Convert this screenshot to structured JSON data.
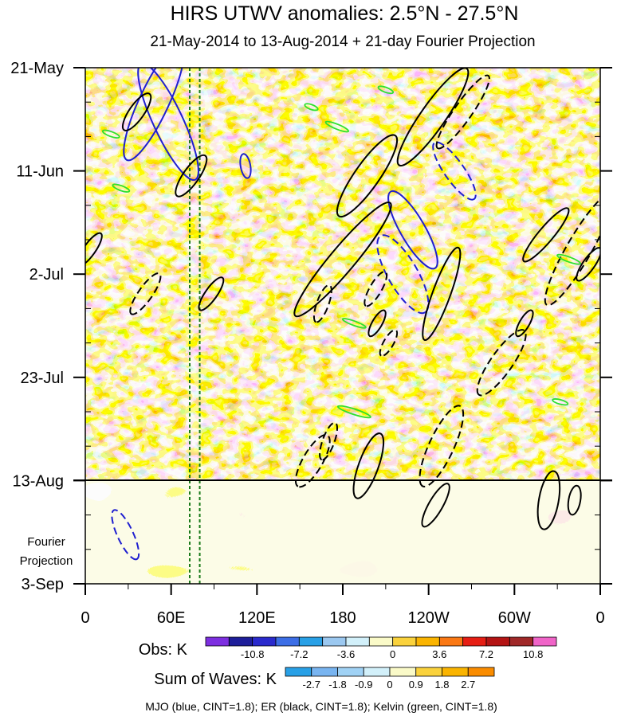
{
  "chart_data": {
    "type": "heatmap",
    "title": "HIRS UTWV anomalies: 2.5°N - 27.5°N",
    "subtitle": "21-May-2014 to 13-Aug-2014 + 21-day Fourier Projection",
    "x_tick_labels": [
      "0",
      "60E",
      "120E",
      "180",
      "120W",
      "60W",
      "0"
    ],
    "x_ticks_deg": [
      0,
      60,
      120,
      180,
      240,
      300,
      360
    ],
    "y_tick_labels": [
      "21-May",
      "11-Jun",
      "2-Jul",
      "23-Jul",
      "13-Aug",
      "3-Sep"
    ],
    "y_ticks_day": [
      0,
      21,
      42,
      63,
      84,
      105
    ],
    "y_range_days": [
      0,
      105
    ],
    "obs_end_day": 84,
    "projection_label": [
      "Fourier",
      "Projection"
    ],
    "obs_colorbar": {
      "label": "Obs: K",
      "colors": [
        "#7d2fe0",
        "#1e1e9a",
        "#2a2acd",
        "#3c6ee6",
        "#28a0e6",
        "#9bc8f0",
        "#d2f0fa",
        "#fafac8",
        "#fad23c",
        "#fab400",
        "#fa7814",
        "#e61e14",
        "#b41414",
        "#a02828",
        "#f064c8"
      ],
      "tick_labels": [
        "-10.8",
        "-7.2",
        "-3.6",
        "0",
        "3.6",
        "7.2",
        "10.8"
      ]
    },
    "waves_colorbar": {
      "label": "Sum of Waves: K",
      "colors": [
        "#28a0e6",
        "#78b4f0",
        "#a0d2f5",
        "#d2f0fa",
        "#fafac8",
        "#fad23c",
        "#fab400",
        "#fa8c00"
      ],
      "tick_labels": [
        "-2.7",
        "-1.8",
        "-0.9",
        "0",
        "0.9",
        "1.8",
        "2.7"
      ]
    },
    "footer": "MJO (blue, CINT=1.8); ER (black, CINT=1.8); Kelvin (green, CINT=1.8)",
    "reference_lines_lon": [
      73,
      80
    ],
    "wave_contours": {
      "mjo": [
        {
          "lon": 48,
          "day": 7,
          "a": 13,
          "b": 3,
          "deg": 115,
          "dash": false
        },
        {
          "lon": 58,
          "day": 11,
          "a": 13,
          "b": 3,
          "deg": 65,
          "dash": false
        },
        {
          "lon": 112,
          "day": 20,
          "a": 2.5,
          "b": 1,
          "deg": 80,
          "dash": false
        },
        {
          "lon": 229,
          "day": 33,
          "a": 9,
          "b": 2.5,
          "deg": 60,
          "dash": false
        },
        {
          "lon": 222,
          "day": 42,
          "a": 9,
          "b": 3,
          "deg": 60,
          "dash": true
        },
        {
          "lon": 258,
          "day": 21,
          "a": 7,
          "b": 2,
          "deg": 55,
          "dash": true
        },
        {
          "lon": 28,
          "day": 95,
          "a": 5.5,
          "b": 1.6,
          "deg": 65,
          "dash": true
        }
      ],
      "er": [
        {
          "lon": 36,
          "day": 9,
          "a": 4.5,
          "b": 1.5,
          "deg": 125,
          "dash": false
        },
        {
          "lon": 74,
          "day": 22,
          "a": 5,
          "b": 1.6,
          "deg": 125,
          "dash": false
        },
        {
          "lon": 88,
          "day": 46,
          "a": 4,
          "b": 1.2,
          "deg": 125,
          "dash": false
        },
        {
          "lon": 42,
          "day": 46,
          "a": 5,
          "b": 1.4,
          "deg": 125,
          "dash": true
        },
        {
          "lon": 3,
          "day": 37,
          "a": 4,
          "b": 1.2,
          "deg": 125,
          "dash": false
        },
        {
          "lon": 180,
          "day": 39,
          "a": 15,
          "b": 2.5,
          "deg": 130,
          "dash": false
        },
        {
          "lon": 197,
          "day": 22,
          "a": 10,
          "b": 2.5,
          "deg": 125,
          "dash": false
        },
        {
          "lon": 243,
          "day": 10,
          "a": 12,
          "b": 2.5,
          "deg": 125,
          "dash": false
        },
        {
          "lon": 264,
          "day": 9,
          "a": 9,
          "b": 1.8,
          "deg": 125,
          "dash": true
        },
        {
          "lon": 249,
          "day": 46,
          "a": 10,
          "b": 1.8,
          "deg": 110,
          "dash": false
        },
        {
          "lon": 203,
          "day": 45,
          "a": 4,
          "b": 1.2,
          "deg": 120,
          "dash": true
        },
        {
          "lon": 204,
          "day": 52,
          "a": 3,
          "b": 1,
          "deg": 120,
          "dash": false
        },
        {
          "lon": 322,
          "day": 34,
          "a": 7,
          "b": 1.5,
          "deg": 130,
          "dash": false
        },
        {
          "lon": 345,
          "day": 37,
          "a": 13,
          "b": 2.5,
          "deg": 120,
          "dash": true
        },
        {
          "lon": 352,
          "day": 40,
          "a": 4,
          "b": 1.2,
          "deg": 125,
          "dash": false
        },
        {
          "lon": 291,
          "day": 60,
          "a": 8,
          "b": 2.2,
          "deg": 125,
          "dash": true
        },
        {
          "lon": 307,
          "day": 52,
          "a": 3,
          "b": 1,
          "deg": 120,
          "dash": false
        },
        {
          "lon": 159,
          "day": 80,
          "a": 6,
          "b": 2,
          "deg": 120,
          "dash": true
        },
        {
          "lon": 198,
          "day": 81,
          "a": 7,
          "b": 2,
          "deg": 110,
          "dash": false
        },
        {
          "lon": 249,
          "day": 77,
          "a": 9,
          "b": 2.5,
          "deg": 115,
          "dash": true
        },
        {
          "lon": 166,
          "day": 48,
          "a": 4,
          "b": 1.2,
          "deg": 110,
          "dash": true
        },
        {
          "lon": 212,
          "day": 56,
          "a": 3,
          "b": 1,
          "deg": 120,
          "dash": true
        },
        {
          "lon": 170,
          "day": 76,
          "a": 4,
          "b": 1.2,
          "deg": 110,
          "dash": true
        },
        {
          "lon": 324,
          "day": 88,
          "a": 6,
          "b": 2,
          "deg": 100,
          "dash": false
        },
        {
          "lon": 245,
          "day": 89,
          "a": 5,
          "b": 1.4,
          "deg": 120,
          "dash": false
        },
        {
          "lon": 342,
          "day": 88,
          "a": 3,
          "b": 1.2,
          "deg": 100,
          "dash": false
        }
      ],
      "kelvin": [
        {
          "lon": 18,
          "day": 13.5,
          "a": 1.8,
          "b": 0.5,
          "deg": 20
        },
        {
          "lon": 25,
          "day": 24.5,
          "a": 1.8,
          "b": 0.5,
          "deg": 20
        },
        {
          "lon": 210,
          "day": 4.5,
          "a": 1.6,
          "b": 0.5,
          "deg": 20
        },
        {
          "lon": 176,
          "day": 12,
          "a": 2.5,
          "b": 0.5,
          "deg": 22
        },
        {
          "lon": 158,
          "day": 8,
          "a": 1.4,
          "b": 0.5,
          "deg": 20
        },
        {
          "lon": 188,
          "day": 70,
          "a": 3.5,
          "b": 0.55,
          "deg": 18
        },
        {
          "lon": 188,
          "day": 52,
          "a": 2.5,
          "b": 0.45,
          "deg": 20
        },
        {
          "lon": 338,
          "day": 39,
          "a": 2.5,
          "b": 0.5,
          "deg": 20
        },
        {
          "lon": 332,
          "day": 68,
          "a": 1.6,
          "b": 0.45,
          "deg": 15
        }
      ]
    }
  }
}
